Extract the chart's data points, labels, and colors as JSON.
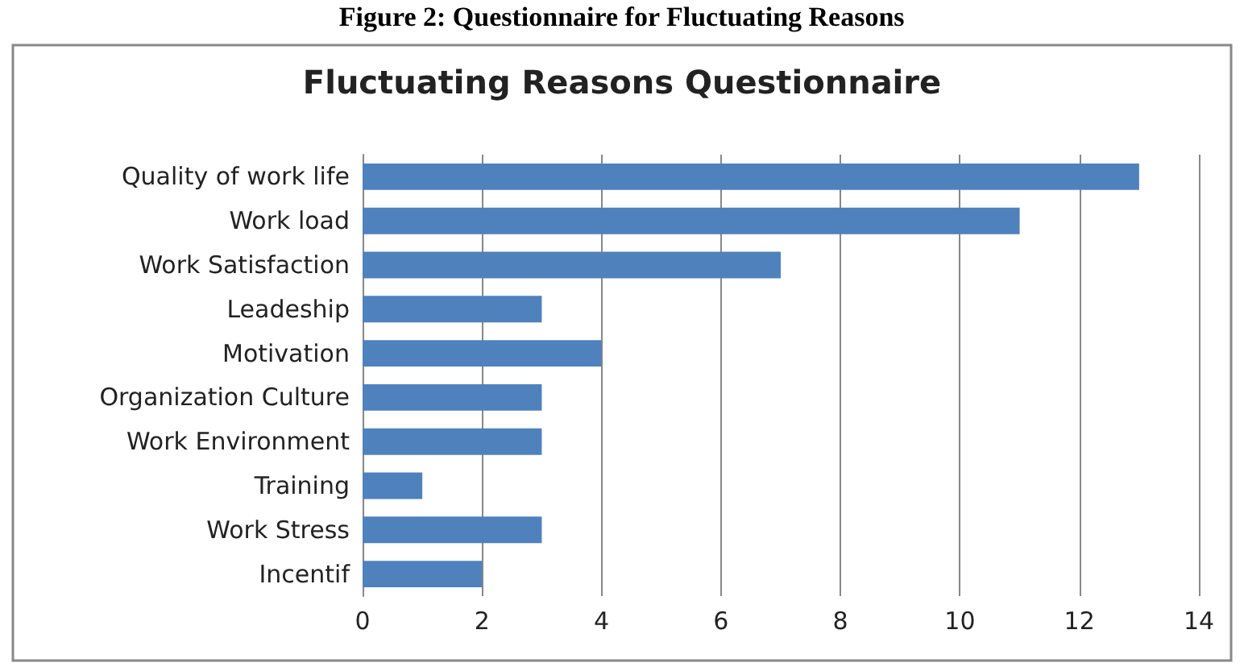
{
  "chart_data": {
    "type": "bar",
    "orientation": "horizontal",
    "title": "Fluctuating Reasons Questionnaire",
    "annotations": [
      "Figure 2: Questionnaire for Fluctuating Reasons"
    ],
    "categories": [
      "Quality of work life",
      "Work load",
      "Work Satisfaction",
      "Leadeship",
      "Motivation",
      "Organization Culture",
      "Work Environment",
      "Training",
      "Work Stress",
      "Incentif"
    ],
    "values": [
      13,
      11,
      7,
      3,
      4,
      3,
      3,
      1,
      3,
      2
    ],
    "color": "#4f81bd",
    "xlim": [
      0,
      14
    ],
    "xticks": [
      0,
      2,
      4,
      6,
      8,
      10,
      12,
      14
    ],
    "grid": "x"
  }
}
